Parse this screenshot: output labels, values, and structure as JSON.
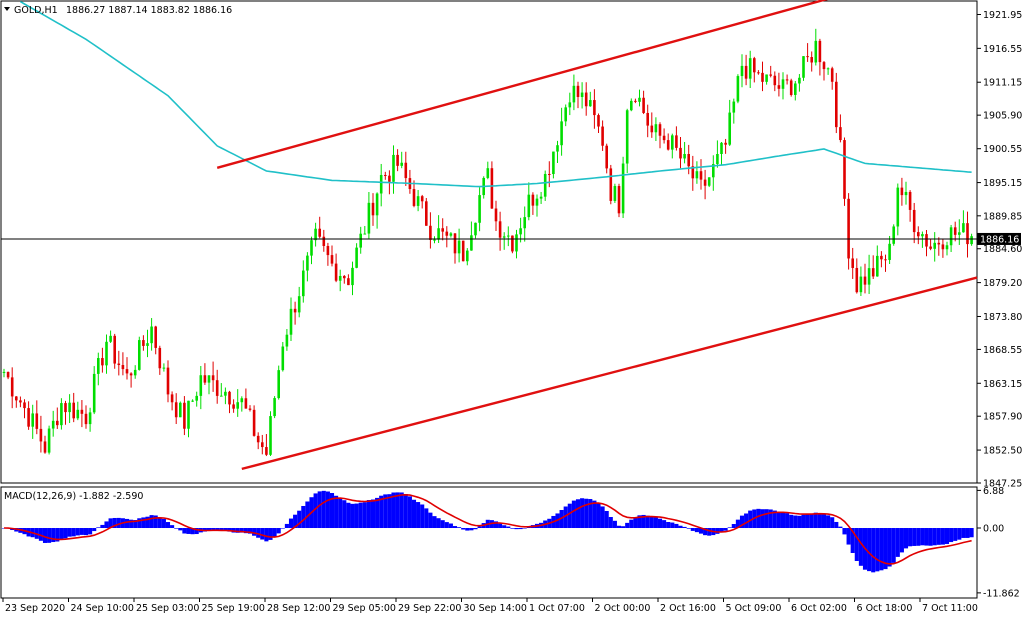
{
  "header": {
    "symbol": "GOLD,H1",
    "ohlc": "1886.27 1887.14 1883.82 1886.16"
  },
  "macd": {
    "label": "MACD(12,26,9) -1.882 -2.590",
    "ticks": [
      "6.88",
      "0.00",
      "-11.862"
    ],
    "tick_values": [
      6.88,
      0.0,
      -11.862
    ],
    "range": [
      -12.8,
      7.5
    ]
  },
  "colors": {
    "bull": "#00dd00",
    "bear": "#e00000",
    "ma": "#20c0c8",
    "channel": "#e01010",
    "histogram": "#0000ff",
    "signal": "#e00000"
  },
  "chart_data": {
    "type": "candlestick",
    "price_range": [
      1847.25,
      1924.1
    ],
    "y_ticks": [
      "1921.95",
      "1916.55",
      "1911.15",
      "1905.90",
      "1900.55",
      "1895.15",
      "1889.85",
      "1884.60",
      "1879.20",
      "1873.80",
      "1868.55",
      "1863.15",
      "1857.90",
      "1852.50",
      "1847.25"
    ],
    "y_tick_values": [
      1921.95,
      1916.55,
      1911.15,
      1905.9,
      1900.55,
      1895.15,
      1889.85,
      1884.6,
      1879.2,
      1873.8,
      1868.55,
      1863.15,
      1857.9,
      1852.5,
      1847.25
    ],
    "current_price": "1886.16",
    "current_price_value": 1886.16,
    "x_labels": [
      "23 Sep 2020",
      "24 Sep 10:00",
      "25 Sep 03:00",
      "25 Sep 19:00",
      "28 Sep 12:00",
      "29 Sep 05:00",
      "29 Sep 22:00",
      "30 Sep 14:00",
      "1 Oct 07:00",
      "2 Oct 00:00",
      "2 Oct 16:00",
      "5 Oct 09:00",
      "6 Oct 02:00",
      "6 Oct 18:00",
      "7 Oct 11:00"
    ],
    "keypoints": [
      [
        0,
        1865
      ],
      [
        6,
        1858
      ],
      [
        10,
        1853
      ],
      [
        14,
        1860
      ],
      [
        20,
        1858
      ],
      [
        25,
        1870
      ],
      [
        30,
        1864
      ],
      [
        36,
        1872
      ],
      [
        40,
        1862
      ],
      [
        44,
        1857
      ],
      [
        48,
        1864
      ],
      [
        54,
        1862
      ],
      [
        58,
        1860
      ],
      [
        62,
        1854
      ],
      [
        64,
        1852
      ],
      [
        68,
        1870
      ],
      [
        72,
        1878
      ],
      [
        76,
        1886
      ],
      [
        80,
        1882
      ],
      [
        84,
        1880
      ],
      [
        88,
        1888
      ],
      [
        92,
        1896
      ],
      [
        96,
        1898
      ],
      [
        100,
        1893
      ],
      [
        104,
        1888
      ],
      [
        108,
        1886
      ],
      [
        112,
        1884
      ],
      [
        116,
        1893
      ],
      [
        118,
        1896
      ],
      [
        120,
        1889
      ],
      [
        124,
        1886
      ],
      [
        128,
        1892
      ],
      [
        132,
        1896
      ],
      [
        136,
        1905
      ],
      [
        138,
        1910
      ],
      [
        142,
        1908
      ],
      [
        146,
        1902
      ],
      [
        148,
        1894
      ],
      [
        150,
        1892
      ],
      [
        152,
        1908
      ],
      [
        154,
        1910
      ],
      [
        158,
        1903
      ],
      [
        162,
        1902
      ],
      [
        166,
        1898
      ],
      [
        170,
        1894
      ],
      [
        172,
        1896
      ],
      [
        176,
        1901
      ],
      [
        180,
        1914
      ],
      [
        184,
        1912
      ],
      [
        190,
        1910
      ],
      [
        194,
        1912
      ],
      [
        198,
        1917
      ],
      [
        202,
        1912
      ],
      [
        204,
        1900
      ],
      [
        206,
        1885
      ],
      [
        208,
        1879
      ],
      [
        212,
        1881
      ],
      [
        216,
        1884
      ],
      [
        218,
        1895
      ],
      [
        222,
        1889
      ],
      [
        226,
        1885
      ],
      [
        230,
        1887
      ],
      [
        236,
        1887
      ]
    ],
    "ma_keypoints": [
      [
        4,
        1924
      ],
      [
        20,
        1918
      ],
      [
        40,
        1909
      ],
      [
        52,
        1901
      ],
      [
        64,
        1897
      ],
      [
        80,
        1895.5
      ],
      [
        100,
        1895
      ],
      [
        116,
        1894.5
      ],
      [
        130,
        1895
      ],
      [
        146,
        1896
      ],
      [
        160,
        1897
      ],
      [
        176,
        1898
      ],
      [
        190,
        1899.5
      ],
      [
        200,
        1900.5
      ],
      [
        210,
        1898.2
      ],
      [
        236,
        1896.8
      ]
    ],
    "channel_upper": [
      [
        52,
        1897.5
      ],
      [
        204,
        1925
      ]
    ],
    "channel_lower": [
      [
        58,
        1849.5
      ],
      [
        240,
        1880
      ]
    ],
    "candle_count": 237
  }
}
